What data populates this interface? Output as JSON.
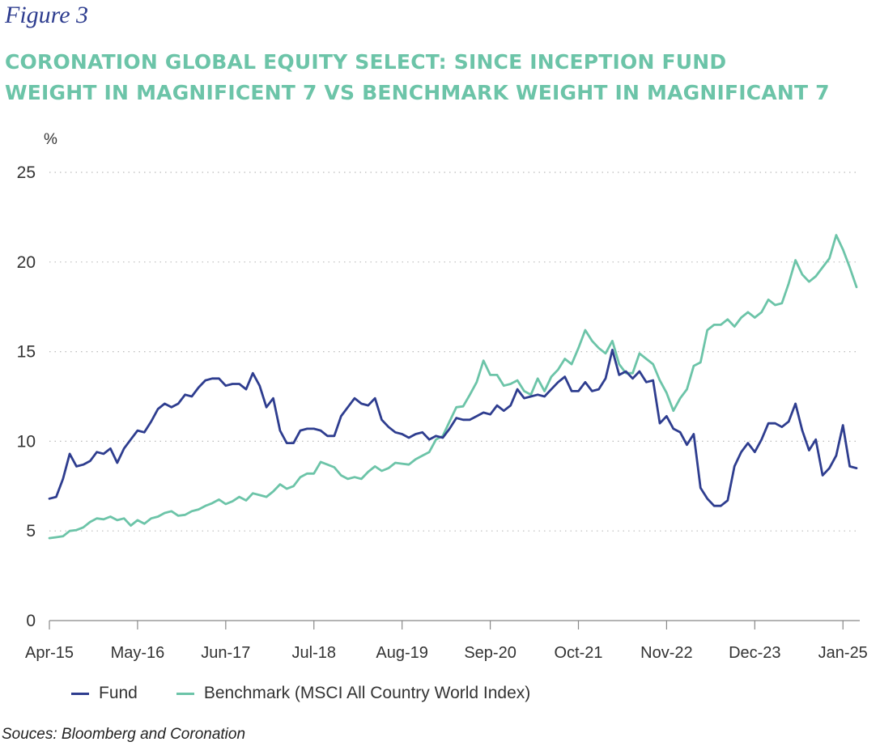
{
  "figure_label": "Figure 3",
  "title": {
    "line1": "CORONATION GLOBAL EQUITY SELECT: SINCE INCEPTION FUND",
    "line2": "WEIGHT IN MAGNIFICENT 7 VS BENCHMARK WEIGHT IN MAGNIFICANT 7"
  },
  "legend": {
    "fund": "Fund",
    "benchmark": "Benchmark (MSCI All Country World Index)"
  },
  "source": "Souces: Bloomberg and Coronation",
  "colors": {
    "fund": "#2e3d8f",
    "benchmark": "#6cc4a8",
    "title": "#6cc4a8",
    "grid": "#bbbbbb"
  },
  "chart_data": {
    "type": "line",
    "title": "CORONATION GLOBAL EQUITY SELECT: SINCE INCEPTION FUND WEIGHT IN MAGNIFICENT 7 VS BENCHMARK WEIGHT IN MAGNIFICANT 7",
    "ylabel": "%",
    "ylim": [
      0,
      25
    ],
    "yticks": [
      0,
      5,
      10,
      15,
      20,
      25
    ],
    "xlim": [
      0,
      119
    ],
    "xticks": [
      {
        "label": "Apr-15",
        "x": 0
      },
      {
        "label": "May-16",
        "x": 13
      },
      {
        "label": "Jun-17",
        "x": 26
      },
      {
        "label": "Jul-18",
        "x": 39
      },
      {
        "label": "Aug-19",
        "x": 52
      },
      {
        "label": "Sep-20",
        "x": 65
      },
      {
        "label": "Oct-21",
        "x": 78
      },
      {
        "label": "Nov-22",
        "x": 91
      },
      {
        "label": "Dec-23",
        "x": 104
      },
      {
        "label": "Jan-25",
        "x": 117
      }
    ],
    "grid": true,
    "series": [
      {
        "name": "Fund",
        "x": [
          0,
          1,
          2,
          3,
          4,
          5,
          6,
          7,
          8,
          9,
          10,
          11,
          12,
          13,
          14,
          15,
          16,
          17,
          18,
          19,
          20,
          21,
          22,
          23,
          24,
          25,
          26,
          27,
          28,
          29,
          30,
          31,
          32,
          33,
          34,
          35,
          36,
          37,
          38,
          39,
          40,
          41,
          42,
          43,
          44,
          45,
          46,
          47,
          48,
          49,
          50,
          51,
          52,
          53,
          54,
          55,
          56,
          57,
          58,
          59,
          60,
          61,
          62,
          63,
          64,
          65,
          66,
          67,
          68,
          69,
          70,
          71,
          72,
          73,
          74,
          75,
          76,
          77,
          78,
          79,
          80,
          81,
          82,
          83,
          84,
          85,
          86,
          87,
          88,
          89,
          90,
          91,
          92,
          93,
          94,
          95,
          96,
          97,
          98,
          99,
          100,
          101,
          102,
          103,
          104,
          105,
          106,
          107,
          108,
          109,
          110,
          111,
          112,
          113,
          114,
          115,
          116,
          117,
          118,
          119
        ],
        "values": [
          6.8,
          6.9,
          7.9,
          9.3,
          8.6,
          8.7,
          8.9,
          9.4,
          9.3,
          9.6,
          8.8,
          9.6,
          10.1,
          10.6,
          10.5,
          11.1,
          11.8,
          12.1,
          11.9,
          12.1,
          12.6,
          12.5,
          13.0,
          13.4,
          13.5,
          13.5,
          13.1,
          13.2,
          13.2,
          12.9,
          13.8,
          13.1,
          11.9,
          12.4,
          10.6,
          9.9,
          9.9,
          10.6,
          10.7,
          10.7,
          10.6,
          10.3,
          10.3,
          11.4,
          11.9,
          12.4,
          12.1,
          12.0,
          12.4,
          11.2,
          10.8,
          10.5,
          10.4,
          10.2,
          10.4,
          10.5,
          10.1,
          10.3,
          10.2,
          10.7,
          11.3,
          11.2,
          11.2,
          11.4,
          11.6,
          11.5,
          12.0,
          11.7,
          12.0,
          12.9,
          12.4,
          12.5,
          12.6,
          12.5,
          12.9,
          13.3,
          13.6,
          12.8,
          12.8,
          13.3,
          12.8,
          12.9,
          13.5,
          15.1,
          13.7,
          13.9,
          13.5,
          13.9,
          13.3,
          13.4,
          11.0,
          11.4,
          10.7,
          10.5,
          9.8,
          10.4,
          7.4,
          6.8,
          6.4,
          6.4,
          6.7,
          8.6,
          9.4,
          9.9,
          9.4,
          10.1,
          11.0,
          11.0,
          10.8,
          11.1,
          12.1,
          10.6,
          9.5,
          10.1,
          8.1,
          8.5,
          9.2,
          10.9,
          8.6,
          8.5
        ]
      },
      {
        "name": "Benchmark (MSCI All Country World Index)",
        "x": [
          0,
          1,
          2,
          3,
          4,
          5,
          6,
          7,
          8,
          9,
          10,
          11,
          12,
          13,
          14,
          15,
          16,
          17,
          18,
          19,
          20,
          21,
          22,
          23,
          24,
          25,
          26,
          27,
          28,
          29,
          30,
          31,
          32,
          33,
          34,
          35,
          36,
          37,
          38,
          39,
          40,
          41,
          42,
          43,
          44,
          45,
          46,
          47,
          48,
          49,
          50,
          51,
          52,
          53,
          54,
          55,
          56,
          57,
          58,
          59,
          60,
          61,
          62,
          63,
          64,
          65,
          66,
          67,
          68,
          69,
          70,
          71,
          72,
          73,
          74,
          75,
          76,
          77,
          78,
          79,
          80,
          81,
          82,
          83,
          84,
          85,
          86,
          87,
          88,
          89,
          90,
          91,
          92,
          93,
          94,
          95,
          96,
          97,
          98,
          99,
          100,
          101,
          102,
          103,
          104,
          105,
          106,
          107,
          108,
          109,
          110,
          111,
          112,
          113,
          114,
          115,
          116,
          117,
          118,
          119
        ],
        "values": [
          4.6,
          4.65,
          4.7,
          5.0,
          5.05,
          5.2,
          5.5,
          5.7,
          5.65,
          5.8,
          5.6,
          5.7,
          5.3,
          5.6,
          5.4,
          5.7,
          5.8,
          6.0,
          6.1,
          5.85,
          5.9,
          6.1,
          6.2,
          6.4,
          6.55,
          6.75,
          6.5,
          6.65,
          6.9,
          6.7,
          7.1,
          7.0,
          6.9,
          7.2,
          7.6,
          7.35,
          7.5,
          8.0,
          8.2,
          8.2,
          8.85,
          8.7,
          8.55,
          8.1,
          7.9,
          8.0,
          7.9,
          8.3,
          8.6,
          8.35,
          8.5,
          8.8,
          8.75,
          8.7,
          9.0,
          9.2,
          9.4,
          10.1,
          10.3,
          11.1,
          11.9,
          11.95,
          12.6,
          13.3,
          14.5,
          13.7,
          13.7,
          13.1,
          13.2,
          13.4,
          12.8,
          12.6,
          13.5,
          12.8,
          13.6,
          14.0,
          14.6,
          14.3,
          15.2,
          16.2,
          15.6,
          15.2,
          14.9,
          15.6,
          14.3,
          13.8,
          13.8,
          14.9,
          14.6,
          14.3,
          13.4,
          12.7,
          11.7,
          12.4,
          12.9,
          14.2,
          14.4,
          16.2,
          16.5,
          16.5,
          16.8,
          16.4,
          16.9,
          17.2,
          16.9,
          17.2,
          17.9,
          17.6,
          17.7,
          18.8,
          20.1,
          19.3,
          18.9,
          19.2,
          19.7,
          20.2,
          21.5,
          20.7,
          19.7,
          18.6
        ]
      }
    ]
  }
}
